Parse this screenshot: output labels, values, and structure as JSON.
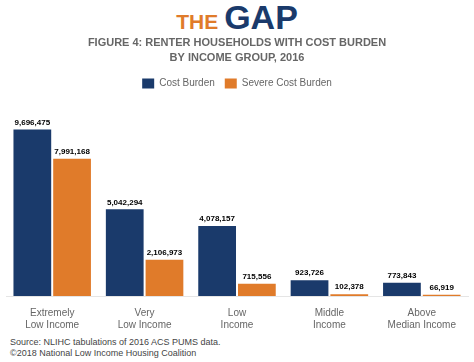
{
  "chart_data": {
    "type": "bar",
    "title": "FIGURE 4: RENTER HOUSEHOLDS WITH COST BURDEN",
    "subtitle": "BY INCOME GROUP, 2016",
    "annotations": [
      {
        "text": "THE",
        "color": "#e07b2a"
      },
      {
        "text": "GAP",
        "color": "#1a3a6b"
      },
      {
        "text": "Source: NLIHC tabulations of 2016 ACS PUMS data.\n©2018 National Low Income Housing Coalition"
      }
    ],
    "categories": [
      "Extremely\nLow Income",
      "Very\nLow Income",
      "Low\nIncome",
      "Middle\nIncome",
      "Above\nMedian Income"
    ],
    "series": [
      {
        "name": "Cost Burden",
        "color": "#1a3a6b",
        "values": [
          9696475,
          5042294,
          4078157,
          923726,
          773843
        ],
        "value_labels": [
          "9,696,475",
          "5,042,294",
          "4,078,157",
          "923,726",
          "773,843"
        ]
      },
      {
        "name": "Severe Cost Burden",
        "color": "#e07b2a",
        "values": [
          7991168,
          2106973,
          715556,
          102378,
          66919
        ],
        "value_labels": [
          "7,991,168",
          "2,106,973",
          "715,556",
          "102,378",
          "66,919"
        ]
      }
    ],
    "ylim": [
      0,
      11500000
    ],
    "tick_labels": "x",
    "grid": false,
    "legend": "top",
    "data_labels": true
  }
}
